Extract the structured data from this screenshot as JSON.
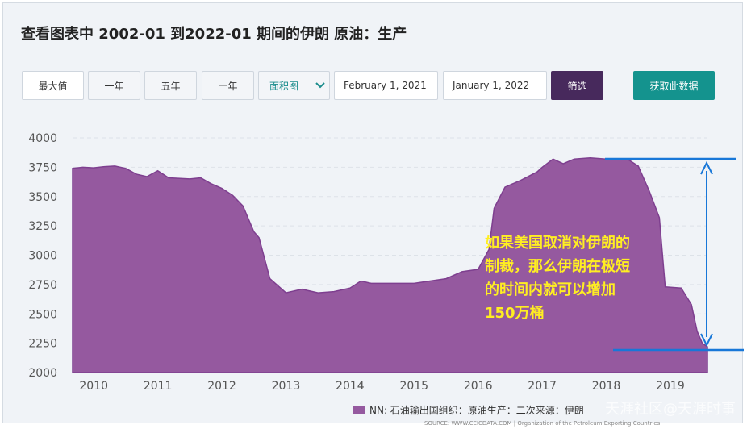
{
  "header": {
    "title": "查看图表中 2002-01 到2022-01 期间的伊朗 原油：生产"
  },
  "controls": {
    "ranges": [
      "最大值",
      "一年",
      "五年",
      "十年"
    ],
    "chart_type": "面积图",
    "start_date": "February 1, 2021",
    "end_date": "January 1, 2022",
    "filter": "筛选",
    "get_data": "获取此数据"
  },
  "chart_data": {
    "type": "area",
    "x": [
      2009.67,
      2009.83,
      2010.0,
      2010.17,
      2010.33,
      2010.5,
      2010.67,
      2010.83,
      2011.0,
      2011.17,
      2011.5,
      2011.67,
      2011.83,
      2012.0,
      2012.17,
      2012.33,
      2012.5,
      2012.58,
      2012.75,
      2013.0,
      2013.25,
      2013.5,
      2013.75,
      2014.0,
      2014.17,
      2014.33,
      2014.67,
      2015.0,
      2015.25,
      2015.5,
      2015.75,
      2016.0,
      2016.17,
      2016.25,
      2016.42,
      2016.67,
      2016.92,
      2017.0,
      2017.17,
      2017.33,
      2017.5,
      2017.75,
      2018.0,
      2018.33,
      2018.5,
      2018.67,
      2018.83,
      2018.92,
      2019.17,
      2019.33,
      2019.42,
      2019.5,
      2019.58
    ],
    "series": [
      {
        "name": "NN: 石油输出国组织：原油生产：二次来源：伊朗",
        "color": "#95599f",
        "values": [
          3740,
          3750,
          3745,
          3755,
          3760,
          3740,
          3690,
          3670,
          3720,
          3660,
          3650,
          3660,
          3610,
          3570,
          3510,
          3420,
          3200,
          3150,
          2800,
          2680,
          2710,
          2680,
          2690,
          2720,
          2780,
          2760,
          2760,
          2760,
          2780,
          2800,
          2860,
          2880,
          3050,
          3400,
          3580,
          3640,
          3710,
          3750,
          3820,
          3780,
          3820,
          3830,
          3820,
          3820,
          3760,
          3550,
          3320,
          2730,
          2720,
          2580,
          2350,
          2250,
          2220
        ]
      }
    ],
    "xlim": [
      2009.67,
      2019.58
    ],
    "xticks": [
      2010,
      2011,
      2012,
      2013,
      2014,
      2015,
      2016,
      2017,
      2018,
      2019
    ],
    "ylim": [
      2000,
      4000
    ],
    "yticks": [
      2000,
      2250,
      2500,
      2750,
      3000,
      3250,
      3500,
      3750,
      4000
    ],
    "grid": true,
    "annotation": [
      "如果美国取消对伊朗的",
      "制裁，那么伊朗在极短",
      "的时间内就可以增加",
      "150万桶"
    ],
    "source": "SOURCE: WWW.CEICDATA.COM | Organization of the Petroleum Exporting Countries",
    "watermark": "天涯社区@天涯时事"
  }
}
